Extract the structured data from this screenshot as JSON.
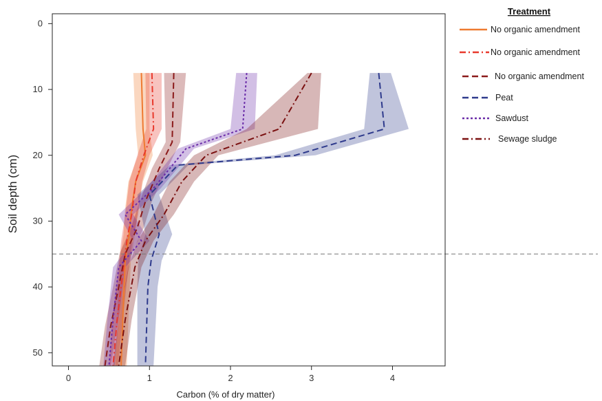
{
  "chart_data": {
    "type": "line",
    "xlabel": "Carbon (% of dry matter)",
    "ylabel": "Soil depth (cm)",
    "xlim": [
      -0.2,
      4.65
    ],
    "ylim": [
      52,
      -1.5
    ],
    "y_reversed": true,
    "xticks": [
      0,
      1,
      2,
      3,
      4
    ],
    "yticks": [
      0,
      10,
      20,
      30,
      40,
      50
    ],
    "grid": false,
    "reference_line": {
      "y": 35,
      "style": "dashed"
    },
    "legend": {
      "title": "Treatment",
      "position": "right"
    },
    "series": [
      {
        "name": "No organic amendment",
        "color": "#ee7a30",
        "dash": "solid",
        "depth": [
          7.5,
          16,
          20,
          24,
          28,
          32,
          36,
          45,
          52
        ],
        "values": [
          0.9,
          0.92,
          0.95,
          0.83,
          0.78,
          0.75,
          0.7,
          0.67,
          0.65
        ],
        "band_low": [
          0.8,
          0.83,
          0.86,
          0.74,
          0.7,
          0.68,
          0.63,
          0.6,
          0.58
        ],
        "band_high": [
          1.0,
          1.0,
          1.04,
          0.92,
          0.86,
          0.82,
          0.77,
          0.74,
          0.72
        ]
      },
      {
        "name": "No organic amendment",
        "color": "#e8392c",
        "dash": "dashdot",
        "depth": [
          7.5,
          16,
          20,
          24,
          29,
          33,
          37,
          45,
          52
        ],
        "values": [
          1.03,
          1.05,
          0.93,
          0.83,
          0.78,
          0.72,
          0.68,
          0.6,
          0.55
        ],
        "band_low": [
          0.95,
          0.96,
          0.85,
          0.75,
          0.7,
          0.65,
          0.62,
          0.54,
          0.5
        ],
        "band_high": [
          1.15,
          1.15,
          1.0,
          0.91,
          0.86,
          0.79,
          0.74,
          0.67,
          0.61
        ]
      },
      {
        "name": "No organic amendment",
        "color": "#8b1a1a",
        "dash": "dashed",
        "depth": [
          7.5,
          18,
          22,
          27,
          31,
          35,
          40,
          46,
          52
        ],
        "values": [
          1.3,
          1.28,
          1.12,
          0.95,
          0.85,
          0.7,
          0.62,
          0.52,
          0.45
        ],
        "band_low": [
          1.18,
          1.2,
          1.03,
          0.88,
          0.77,
          0.63,
          0.55,
          0.45,
          0.38
        ],
        "band_high": [
          1.45,
          1.38,
          1.22,
          1.03,
          0.93,
          0.78,
          0.7,
          0.6,
          0.52
        ]
      },
      {
        "name": "Peat",
        "color": "#2e3a8c",
        "dash": "dashed",
        "depth": [
          7.5,
          16,
          20,
          21.5,
          26,
          32,
          36,
          40,
          52
        ],
        "values": [
          3.83,
          3.9,
          2.8,
          1.35,
          1.0,
          1.12,
          1.02,
          0.98,
          0.95
        ],
        "band_low": [
          3.72,
          3.65,
          2.55,
          1.25,
          0.85,
          0.95,
          0.86,
          0.85,
          0.85
        ],
        "band_high": [
          3.98,
          4.2,
          3.05,
          1.48,
          1.12,
          1.28,
          1.15,
          1.1,
          1.05
        ]
      },
      {
        "name": "Sawdust",
        "color": "#6a2ca8",
        "dash": "dotted",
        "depth": [
          7.5,
          16,
          19,
          25,
          29,
          33,
          37,
          45,
          52
        ],
        "values": [
          2.2,
          2.15,
          1.45,
          1.05,
          0.7,
          0.9,
          0.62,
          0.55,
          0.5
        ],
        "band_low": [
          2.07,
          2.0,
          1.35,
          0.96,
          0.62,
          0.8,
          0.55,
          0.48,
          0.43
        ],
        "band_high": [
          2.33,
          2.3,
          1.55,
          1.14,
          0.8,
          1.0,
          0.7,
          0.62,
          0.57
        ]
      },
      {
        "name": "Sewage sludge",
        "color": "#7a1010",
        "dash": "dashdot",
        "depth": [
          7.5,
          16,
          20,
          24,
          29,
          33,
          37,
          45,
          52
        ],
        "values": [
          3.0,
          2.6,
          1.7,
          1.4,
          1.18,
          0.95,
          0.82,
          0.7,
          0.62
        ],
        "band_low": [
          2.95,
          2.2,
          1.55,
          1.25,
          1.05,
          0.85,
          0.74,
          0.62,
          0.55
        ],
        "band_high": [
          3.12,
          3.08,
          1.85,
          1.55,
          1.3,
          1.05,
          0.9,
          0.78,
          0.7
        ]
      }
    ]
  }
}
